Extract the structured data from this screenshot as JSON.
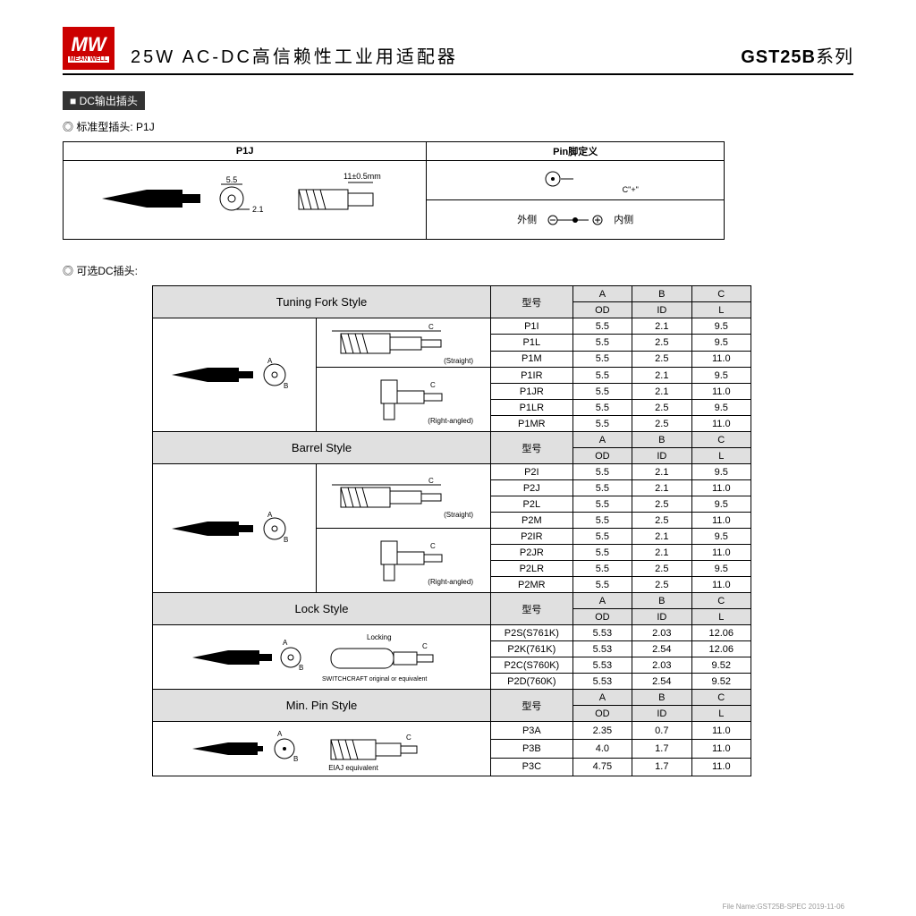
{
  "brand": {
    "logo_top": "MW",
    "logo_bottom": "MEAN WELL"
  },
  "title": "25W AC-DC高信赖性工业用适配器",
  "series_prefix": "GST25B",
  "series_suffix": "系列",
  "section_dc_out": "■ DC输出插头",
  "std_plug_label": "标准型插头: P1J",
  "p1j": {
    "hdr_left": "P1J",
    "hdr_right": "Pin脚定义",
    "dim_od": "5.5",
    "dim_id": "2.1",
    "dim_len": "11±0.5mm",
    "center_label": "C\"+\"",
    "outside": "外侧",
    "inside": "内侧"
  },
  "optional_label": "可选DC插头:",
  "cols": {
    "model": "型号",
    "A": "A",
    "B": "B",
    "C": "C",
    "OD": "OD",
    "ID": "ID",
    "L": "L"
  },
  "diag_labels": {
    "straight": "(Straight)",
    "right_angled": "(Right-angled)",
    "locking": "Locking",
    "switchcraft": "SWITCHCRAFT original or equivalent",
    "eiaj": "EIAJ equivalent",
    "A": "A",
    "B": "B",
    "C": "C"
  },
  "styles": [
    {
      "name": "Tuning Fork Style",
      "rows": [
        {
          "m": "P1I",
          "a": "5.5",
          "b": "2.1",
          "c": "9.5"
        },
        {
          "m": "P1L",
          "a": "5.5",
          "b": "2.5",
          "c": "9.5"
        },
        {
          "m": "P1M",
          "a": "5.5",
          "b": "2.5",
          "c": "11.0"
        },
        {
          "m": "P1IR",
          "a": "5.5",
          "b": "2.1",
          "c": "9.5"
        },
        {
          "m": "P1JR",
          "a": "5.5",
          "b": "2.1",
          "c": "11.0"
        },
        {
          "m": "P1LR",
          "a": "5.5",
          "b": "2.5",
          "c": "9.5"
        },
        {
          "m": "P1MR",
          "a": "5.5",
          "b": "2.5",
          "c": "11.0"
        }
      ]
    },
    {
      "name": "Barrel Style",
      "rows": [
        {
          "m": "P2I",
          "a": "5.5",
          "b": "2.1",
          "c": "9.5"
        },
        {
          "m": "P2J",
          "a": "5.5",
          "b": "2.1",
          "c": "11.0"
        },
        {
          "m": "P2L",
          "a": "5.5",
          "b": "2.5",
          "c": "9.5"
        },
        {
          "m": "P2M",
          "a": "5.5",
          "b": "2.5",
          "c": "11.0"
        },
        {
          "m": "P2IR",
          "a": "5.5",
          "b": "2.1",
          "c": "9.5"
        },
        {
          "m": "P2JR",
          "a": "5.5",
          "b": "2.1",
          "c": "11.0"
        },
        {
          "m": "P2LR",
          "a": "5.5",
          "b": "2.5",
          "c": "9.5"
        },
        {
          "m": "P2MR",
          "a": "5.5",
          "b": "2.5",
          "c": "11.0"
        }
      ]
    },
    {
      "name": "Lock Style",
      "rows": [
        {
          "m": "P2S(S761K)",
          "a": "5.53",
          "b": "2.03",
          "c": "12.06"
        },
        {
          "m": "P2K(761K)",
          "a": "5.53",
          "b": "2.54",
          "c": "12.06"
        },
        {
          "m": "P2C(S760K)",
          "a": "5.53",
          "b": "2.03",
          "c": "9.52"
        },
        {
          "m": "P2D(760K)",
          "a": "5.53",
          "b": "2.54",
          "c": "9.52"
        }
      ]
    },
    {
      "name": "Min. Pin Style",
      "rows": [
        {
          "m": "P3A",
          "a": "2.35",
          "b": "0.7",
          "c": "11.0"
        },
        {
          "m": "P3B",
          "a": "4.0",
          "b": "1.7",
          "c": "11.0"
        },
        {
          "m": "P3C",
          "a": "4.75",
          "b": "1.7",
          "c": "11.0"
        }
      ]
    }
  ],
  "footer": "File Name:GST25B-SPEC  2019-11-06",
  "colors": {
    "brand_red": "#cc0000",
    "gray_bg": "#e0e0e0",
    "border": "#000000"
  }
}
